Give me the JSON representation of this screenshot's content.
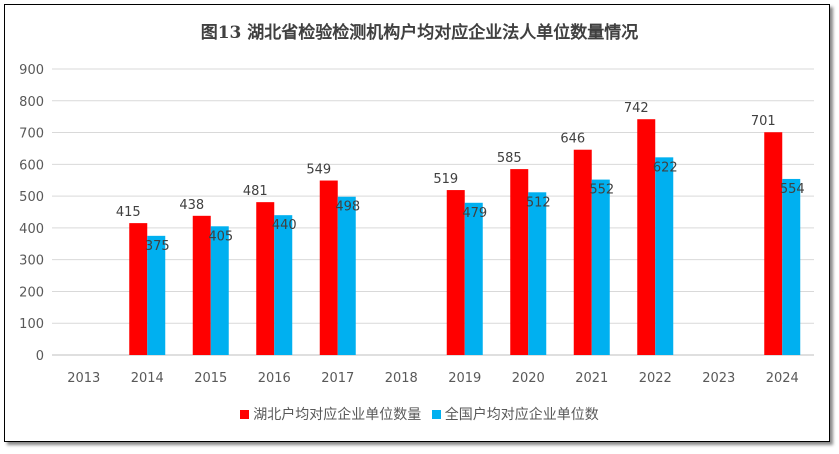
{
  "chart_data": {
    "type": "bar",
    "title": "图13  湖北省检验检测机构户均对应企业法人单位数量情况",
    "categories": [
      "2013",
      "2014",
      "2015",
      "2016",
      "2017",
      "2018",
      "2019",
      "2020",
      "2021",
      "2022",
      "2023",
      "2024"
    ],
    "series": [
      {
        "name": "湖北户均对应企业单位数量",
        "color": "#FF0000",
        "values": [
          null,
          415,
          438,
          481,
          549,
          null,
          519,
          585,
          646,
          742,
          null,
          701
        ]
      },
      {
        "name": "全国户均对应企业单位数",
        "color": "#00B0F0",
        "values": [
          null,
          375,
          405,
          440,
          498,
          null,
          479,
          512,
          552,
          622,
          null,
          554
        ]
      }
    ],
    "ylim": [
      0,
      900
    ],
    "yticks": [
      0,
      100,
      200,
      300,
      400,
      500,
      600,
      700,
      800,
      900
    ],
    "grid": true,
    "legend": "bottom"
  }
}
